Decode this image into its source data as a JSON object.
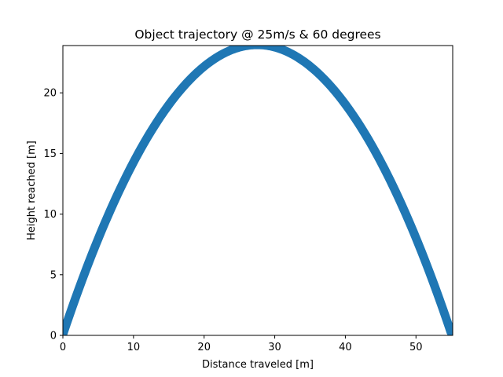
{
  "chart_data": {
    "type": "line",
    "title": "Object trajectory @ 25m/s & 60 degrees",
    "xlabel": "Distance traveled [m]",
    "ylabel": "Height reached [m]",
    "xlim": [
      0,
      55.2
    ],
    "ylim": [
      0,
      23.9
    ],
    "x_ticks": [
      0,
      10,
      20,
      30,
      40,
      50
    ],
    "y_ticks": [
      0,
      5,
      10,
      15,
      20
    ],
    "grid": false,
    "legend": "none",
    "series": [
      {
        "color": "#1f77b4",
        "x": [
          0.0,
          2.5,
          5.0,
          7.5,
          10.0,
          12.5,
          15.0,
          17.5,
          20.0,
          22.5,
          25.0,
          27.6,
          30.0,
          32.5,
          35.0,
          37.5,
          40.0,
          42.5,
          45.0,
          47.5,
          50.0,
          52.5,
          55.2
        ],
        "y": [
          0.0,
          4.2,
          8.0,
          11.3,
          14.3,
          16.9,
          19.0,
          20.8,
          22.2,
          23.2,
          23.8,
          23.9,
          23.8,
          23.2,
          22.2,
          20.8,
          19.0,
          16.9,
          14.3,
          11.3,
          8.0,
          4.2,
          0.0
        ]
      }
    ]
  }
}
